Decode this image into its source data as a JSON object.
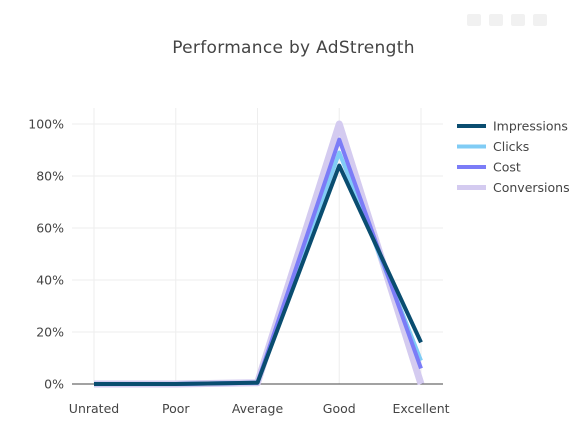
{
  "chart_data": {
    "type": "line",
    "title": "Performance by AdStrength",
    "xlabel": "",
    "ylabel": "",
    "categories": [
      "Unrated",
      "Poor",
      "Average",
      "Good",
      "Excellent"
    ],
    "ylim": [
      0,
      100
    ],
    "yticks": [
      0,
      20,
      40,
      60,
      80,
      100
    ],
    "ytick_labels": [
      "0%",
      "20%",
      "40%",
      "60%",
      "80%",
      "100%"
    ],
    "grid": true,
    "legend_position": "top-right",
    "series": [
      {
        "name": "Conversions",
        "color": "#d4cbf0",
        "width": 7,
        "values": [
          0,
          0,
          0.5,
          100,
          0
        ]
      },
      {
        "name": "Clicks",
        "color": "#80ccf5",
        "width": 4,
        "values": [
          0,
          0,
          0.5,
          89,
          9
        ]
      },
      {
        "name": "Cost",
        "color": "#7b7cf7",
        "width": 4,
        "values": [
          0,
          0,
          0.5,
          94,
          6
        ]
      },
      {
        "name": "Impressions",
        "color": "#0a4d70",
        "width": 4,
        "values": [
          0,
          0,
          0.5,
          84,
          16
        ]
      }
    ],
    "legend_order": [
      "Impressions",
      "Clicks",
      "Cost",
      "Conversions"
    ]
  }
}
